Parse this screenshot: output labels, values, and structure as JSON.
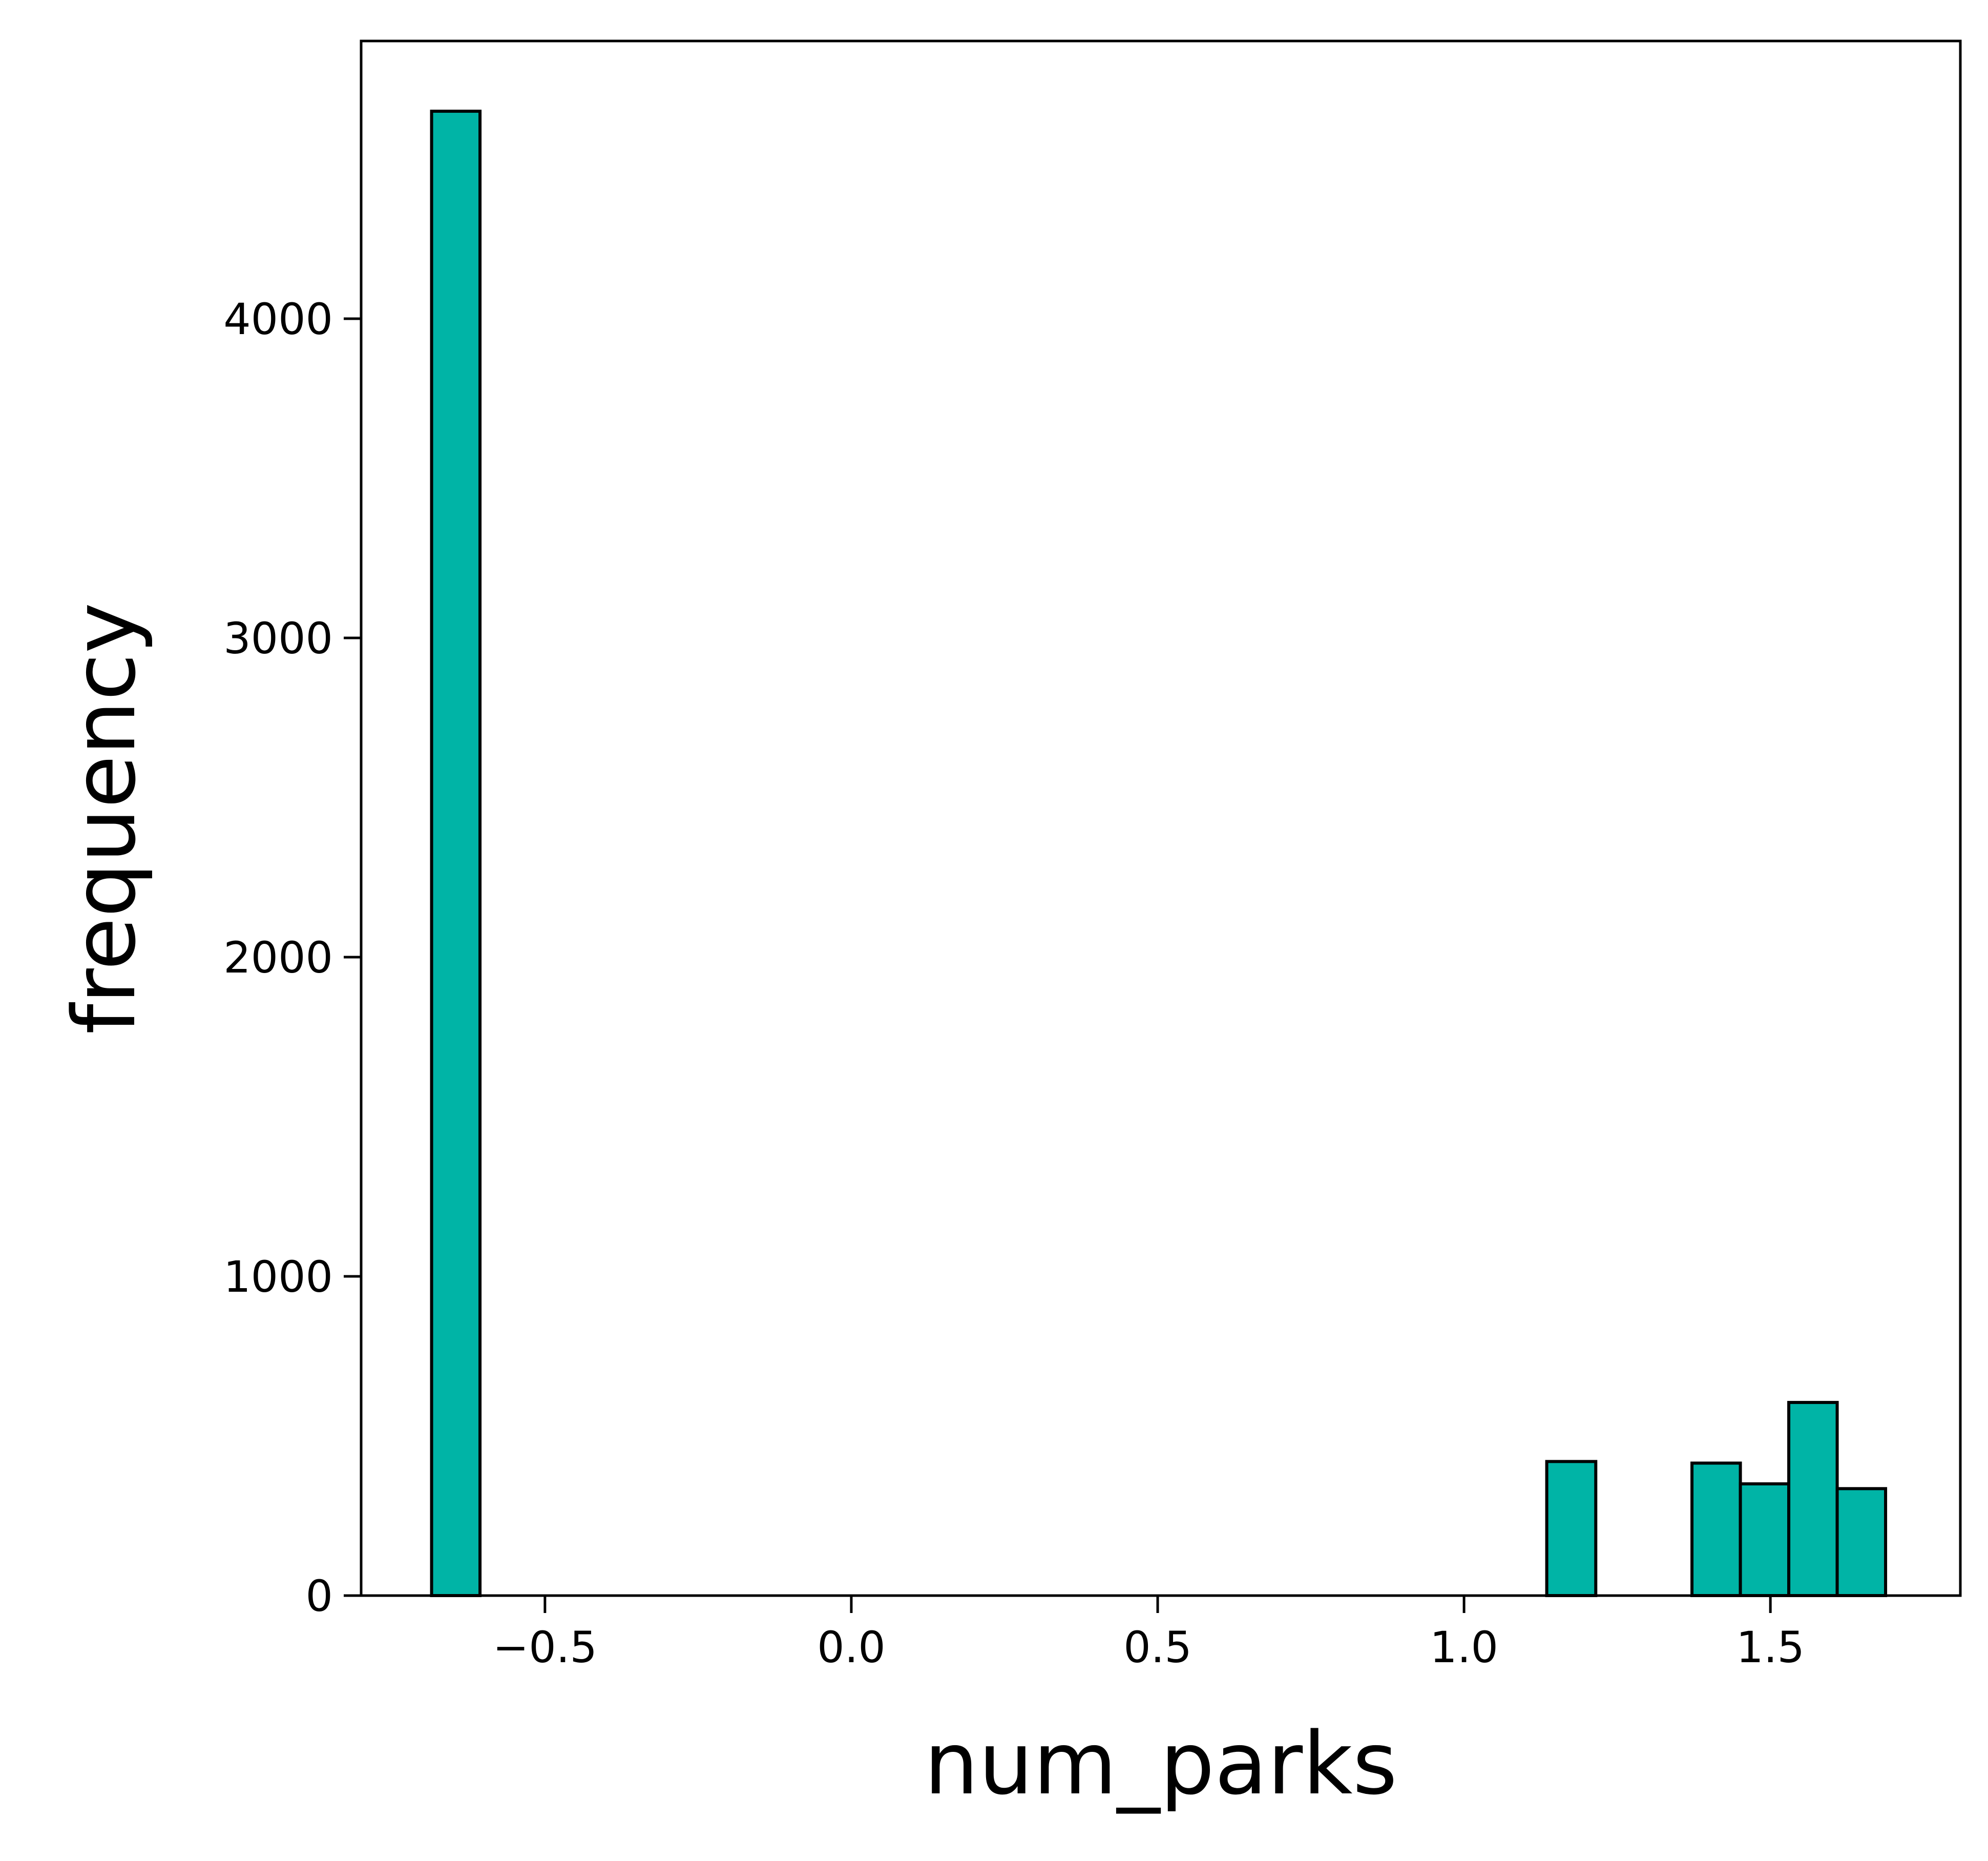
{
  "chart_data": {
    "type": "bar",
    "xlabel": "num_parks",
    "ylabel": "frequency",
    "xlim": [
      -0.8,
      1.81
    ],
    "ylim": [
      0,
      4870
    ],
    "x_ticks": [
      {
        "value": -0.5,
        "label": "−0.5"
      },
      {
        "value": 0.0,
        "label": "0.0"
      },
      {
        "value": 0.5,
        "label": "0.5"
      },
      {
        "value": 1.0,
        "label": "1.0"
      },
      {
        "value": 1.5,
        "label": "1.5"
      }
    ],
    "y_ticks": [
      {
        "value": 0,
        "label": "0"
      },
      {
        "value": 1000,
        "label": "1000"
      },
      {
        "value": 2000,
        "label": "2000"
      },
      {
        "value": 3000,
        "label": "3000"
      },
      {
        "value": 4000,
        "label": "4000"
      }
    ],
    "bins": [
      {
        "x0": -0.685,
        "x1": -0.606,
        "count": 4650
      },
      {
        "x0": 1.135,
        "x1": 1.215,
        "count": 420
      },
      {
        "x0": 1.372,
        "x1": 1.451,
        "count": 415
      },
      {
        "x0": 1.451,
        "x1": 1.53,
        "count": 350
      },
      {
        "x0": 1.53,
        "x1": 1.609,
        "count": 605
      },
      {
        "x0": 1.609,
        "x1": 1.688,
        "count": 335
      }
    ],
    "bar_color": "#00b4a6",
    "edge_color": "#000000",
    "grid": false,
    "legend": "none"
  }
}
